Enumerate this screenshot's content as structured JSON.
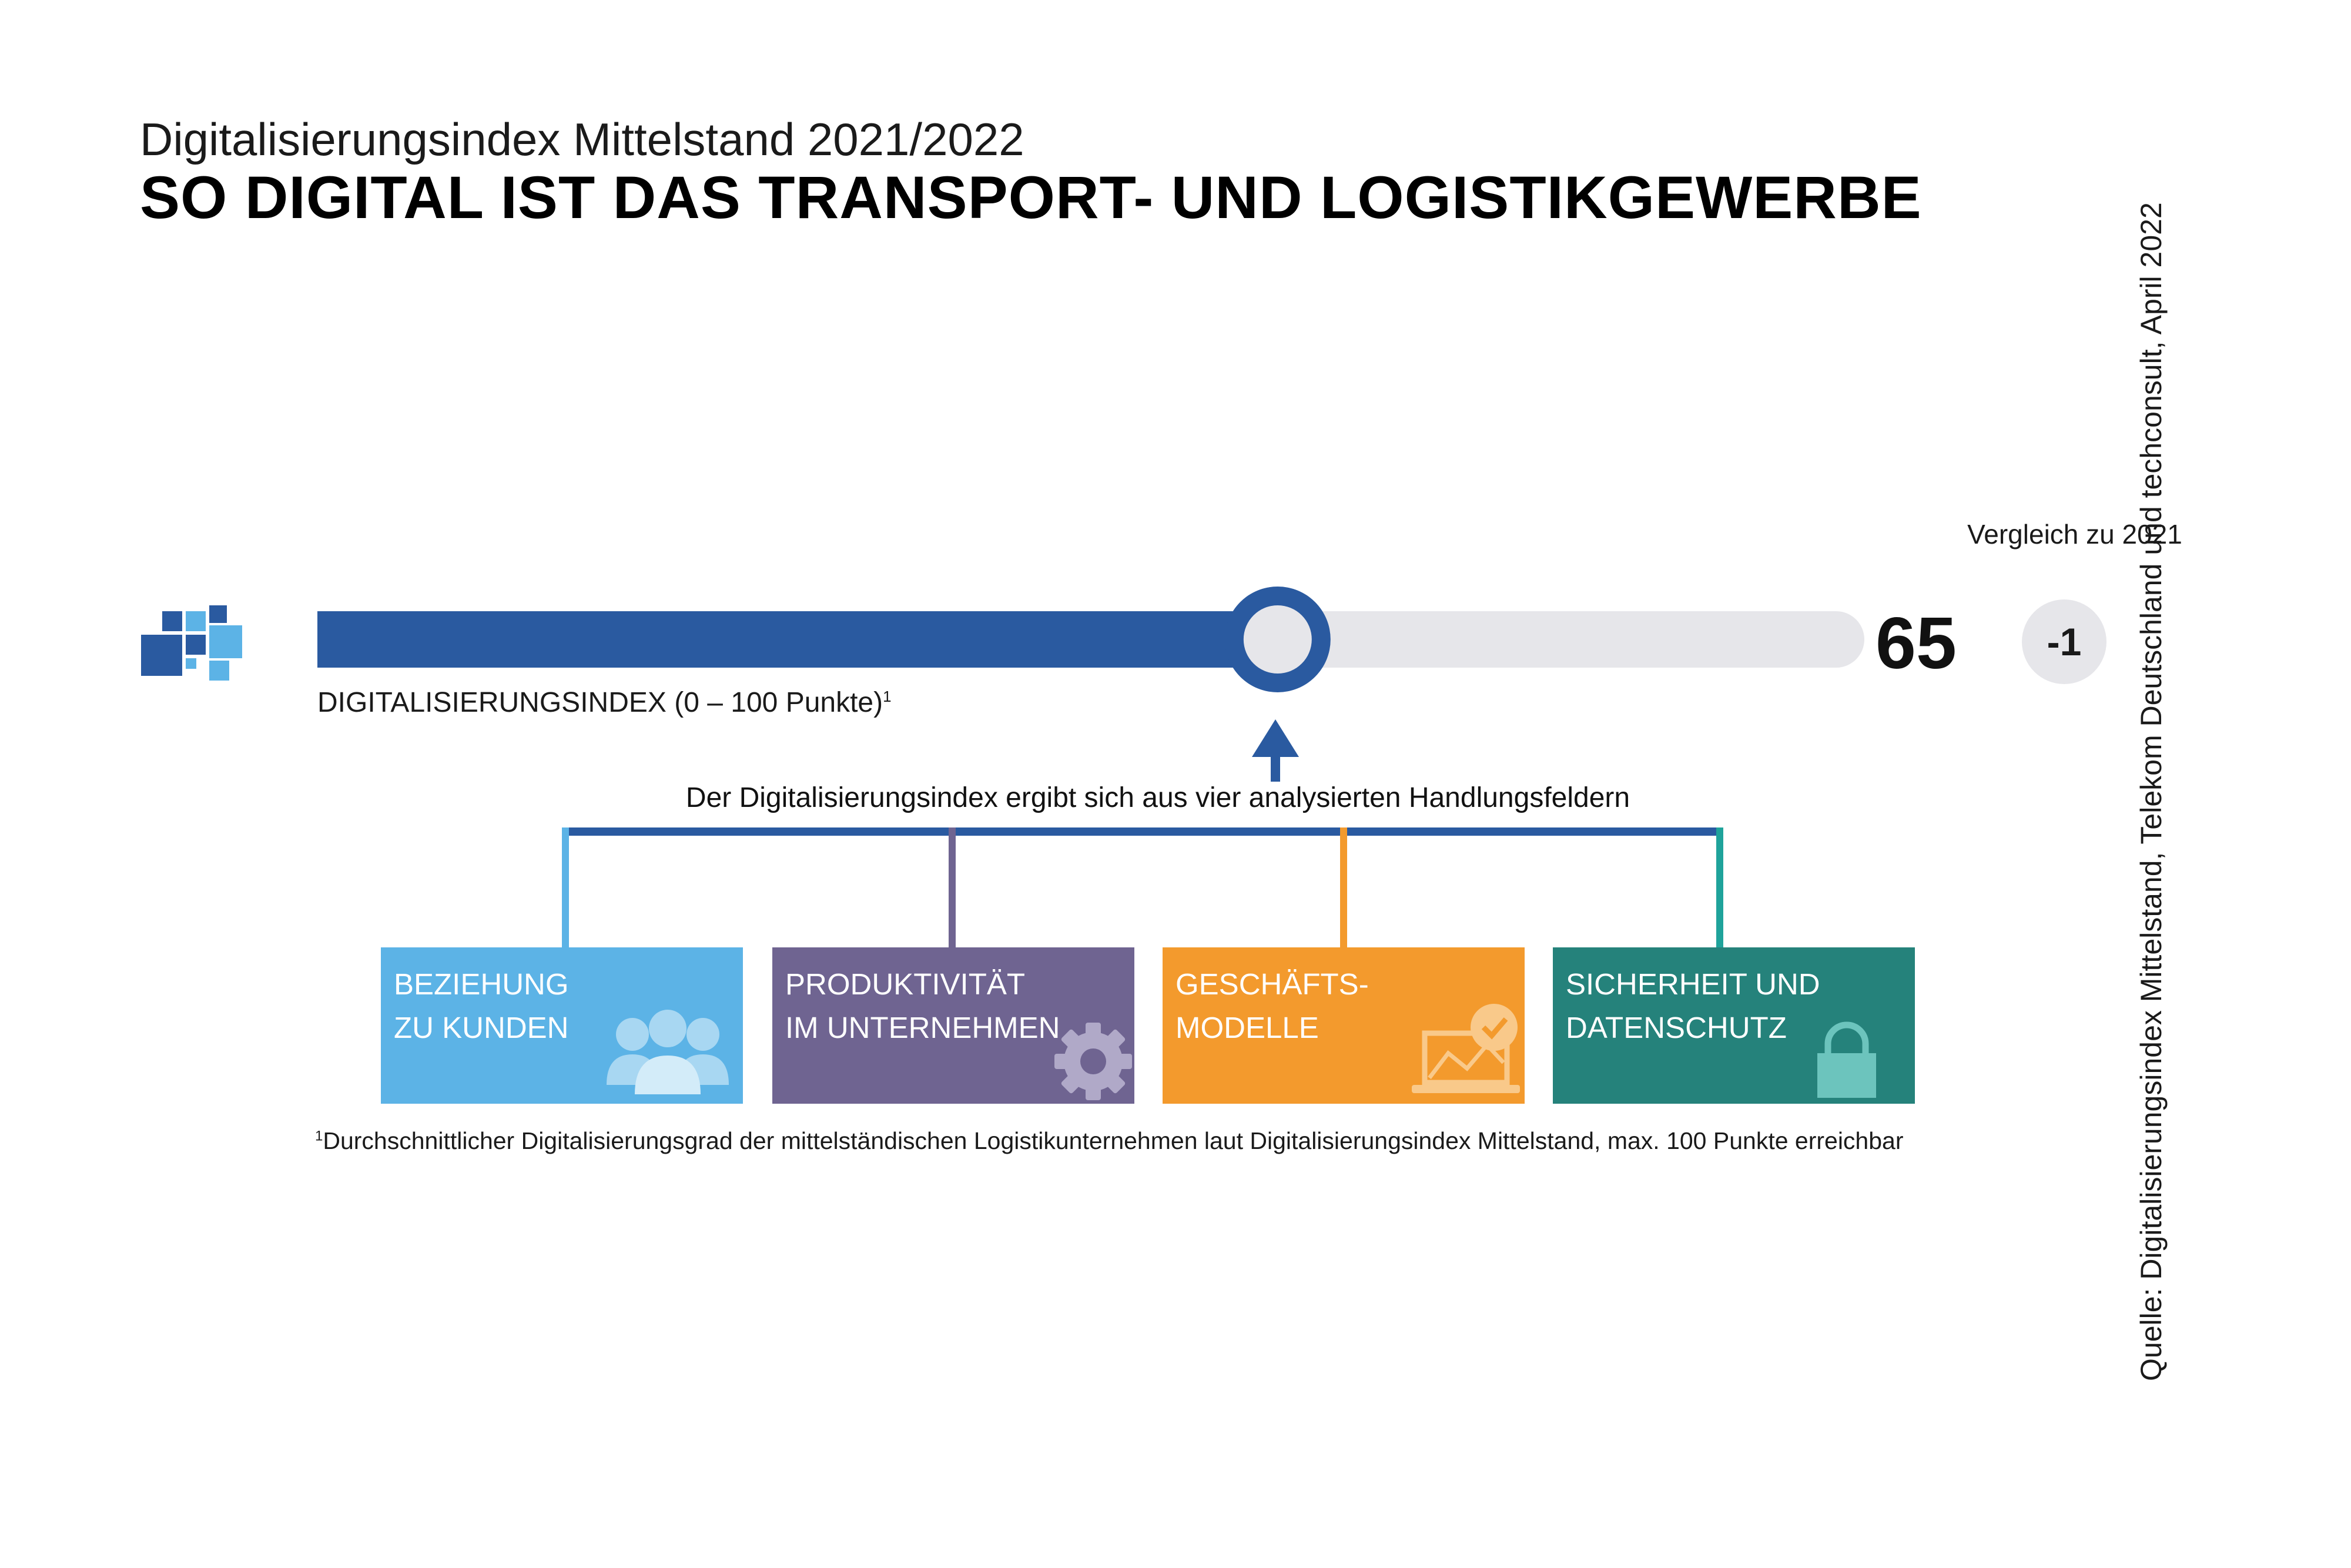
{
  "header": {
    "subtitle": "Digitalisierungsindex Mittelstand 2021/2022",
    "title": "SO DIGITAL IST DAS TRANSPORT- UND LOGISTIKGEWERBE"
  },
  "source": "Quelle: Digitalisierungsindex Mittelstand, Telekom Deutschland und techconsult, April 2022",
  "chart_data": {
    "type": "bar",
    "value": 65,
    "range": [
      0,
      100
    ],
    "label": "DIGITALISIERUNGSINDEX (0 – 100 Punkte)",
    "label_footnote_mark": "1",
    "comparison": {
      "label": "Vergleich zu 2021",
      "value": "-1"
    }
  },
  "fields": {
    "caption": "Der Digitalisierungsindex ergibt sich aus vier analysierten Handlungsfeldern",
    "items": [
      {
        "label": "BEZIEHUNG\nZU KUNDEN",
        "color": "#5cb3e6",
        "icon": "people-icon"
      },
      {
        "label": "PRODUKTIVITÄT\nIM UNTERNEHMEN",
        "color": "#6f6491",
        "icon": "gear-icon"
      },
      {
        "label": "GESCHÄFTS-\nMODELLE",
        "color": "#f39a2d",
        "icon": "laptop-check-icon"
      },
      {
        "label": "SICHERHEIT UND\nDATENSCHUTZ",
        "color": "#25827b",
        "icon": "lock-icon"
      }
    ]
  },
  "footnote": {
    "mark": "1",
    "text": "Durchschnittlicher Digitalisierungsgrad der mittelständischen Logistikunternehmen laut Digitalisierungsindex Mittelstand, max. 100 Punkte erreichbar"
  },
  "colors": {
    "bar_fill": "#2a5aa0",
    "bar_track": "#e6e6ea",
    "marker_ring": "#2a5aa0",
    "marker_center": "#e6e6ea"
  }
}
